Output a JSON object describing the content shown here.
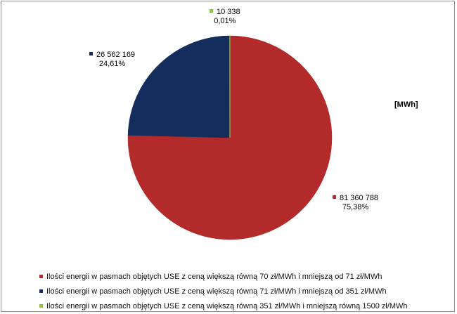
{
  "chart_data": {
    "type": "pie",
    "unit_label": "[MWh]",
    "slices": [
      {
        "name": "Ilości energii w pasmach objętych USE z ceną większą równą 70 zł/MWh i mniejszą od 71 zł/MWh",
        "value": 81360788,
        "value_label": "81 360 788",
        "percent_label": "75,38%",
        "color": "#b22a2a"
      },
      {
        "name": "Ilości energii w pasmach objętych USE z ceną większą równą 71 zł/MWh i mniejszą od 351 zł/MWh",
        "value": 26562169,
        "value_label": "26 562 169",
        "percent_label": "24,61%",
        "color": "#152d5c"
      },
      {
        "name": "Ilości energii w pasmach objętych USE z ceną większą równą 351 zł/MWh i mniejszą równą 1500 zł/MWh",
        "value": 10338,
        "value_label": "10 338",
        "percent_label": "0,01%",
        "color": "#8cc63f"
      }
    ],
    "legend_position": "bottom"
  }
}
